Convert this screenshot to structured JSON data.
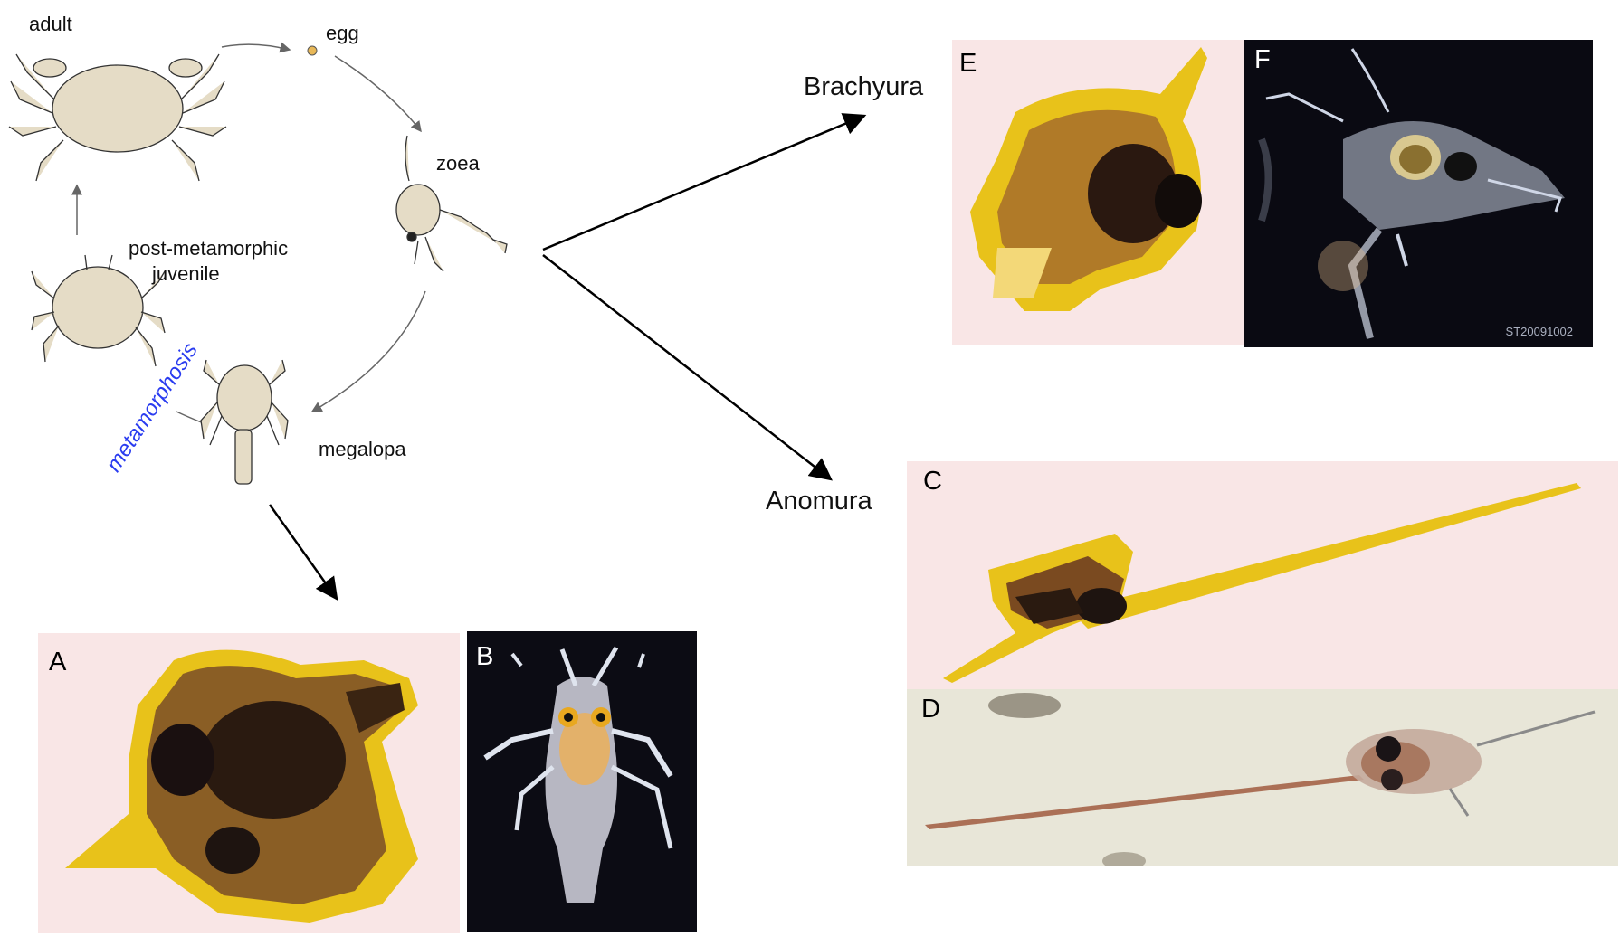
{
  "lifecycle": {
    "adult": "adult",
    "egg": "egg",
    "zoea": "zoea",
    "juvenile_line1": "post-metamorphic",
    "juvenile_line2": "juvenile",
    "megalopa": "megalopa",
    "metamorphosis": "metamorphosis"
  },
  "branches": {
    "brachyura": "Brachyura",
    "anomura": "Anomura"
  },
  "panels": {
    "A": "A",
    "B": "B",
    "C": "C",
    "D": "D",
    "E": "E",
    "F": "F",
    "F_watermark": "ST20091002"
  },
  "colors": {
    "line_drawing": "#e5dcc6",
    "pinkish_bg": "#f9e6e6",
    "dark_bg": "#0c0c14",
    "amber": "#e8c21a",
    "dark_brown": "#2a1a10",
    "metamorphosis_text": "#2a3cf0"
  }
}
